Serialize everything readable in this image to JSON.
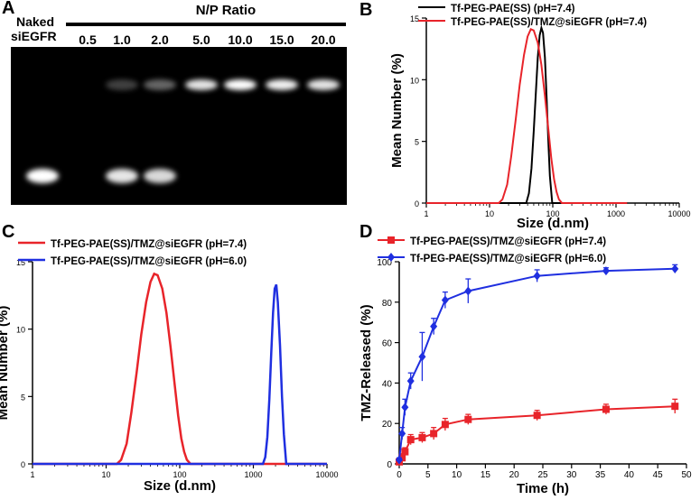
{
  "panels": {
    "a": {
      "letter": "A",
      "header": "N/P Ratio",
      "lane_labels": [
        "Naked\nsiEGFR",
        "0.5",
        "1.0",
        "2.0",
        "5.0",
        "10.0",
        "15.0",
        "20.0"
      ],
      "band_pattern": {
        "free_sirna_band": [
          1.0,
          0.0,
          0.9,
          0.85,
          0.0,
          0.0,
          0.0,
          0.0
        ],
        "retained_band": [
          0.0,
          0.0,
          0.25,
          0.4,
          0.9,
          1.0,
          0.95,
          0.9
        ]
      },
      "colors": {
        "gel_background": "#000000",
        "band": "#ffffff"
      }
    },
    "b": {
      "letter": "B"
    },
    "c": {
      "letter": "C"
    },
    "d": {
      "letter": "D"
    }
  },
  "chart_data": [
    {
      "panel": "B",
      "type": "line",
      "xscale": "log",
      "xlabel": "Size (d.nm)",
      "ylabel": "Mean Number (%)",
      "xlim": [
        1,
        10000
      ],
      "ylim": [
        0,
        15
      ],
      "xticks": [
        "1",
        "10",
        "100",
        "1000",
        "10000"
      ],
      "yticks": [
        "0",
        "5",
        "10",
        "15"
      ],
      "legend_position": "top",
      "series": [
        {
          "name": "Tf-PEG-PAE(SS) (pH=7.4)",
          "color": "#000000",
          "x": [
            1,
            38,
            42,
            46,
            50,
            54,
            58,
            62,
            66,
            70,
            75,
            80,
            85,
            90,
            98,
            1500
          ],
          "y": [
            0,
            0,
            0.8,
            2.8,
            5.8,
            9.0,
            11.8,
            13.6,
            14.2,
            13.8,
            11.8,
            8.5,
            5.0,
            2.2,
            0,
            0
          ]
        },
        {
          "name": "Tf-PEG-PAE(SS)/TMZ@siEGFR (pH=7.4)",
          "color": "#e8242a",
          "x": [
            1,
            14,
            16,
            19,
            22,
            26,
            30,
            35,
            40,
            45,
            50,
            58,
            66,
            75,
            85,
            95,
            105,
            115,
            125,
            140,
            1500
          ],
          "y": [
            0,
            0,
            0.3,
            1.5,
            3.8,
            6.8,
            9.6,
            12.0,
            13.5,
            14.1,
            14.0,
            13.0,
            11.2,
            8.7,
            6.0,
            3.6,
            1.9,
            0.9,
            0.3,
            0,
            0
          ]
        }
      ]
    },
    {
      "panel": "C",
      "type": "line",
      "xscale": "log",
      "xlabel": "Size (d.nm)",
      "ylabel": "Mean Number (%)",
      "xlim": [
        1,
        10000
      ],
      "ylim": [
        0,
        15
      ],
      "xticks": [
        "1",
        "10",
        "100",
        "1000",
        "10000"
      ],
      "yticks": [
        "0",
        "5",
        "10",
        "15"
      ],
      "legend_position": "top-left",
      "series": [
        {
          "name": "Tf-PEG-PAE(SS)/TMZ@siEGFR (pH=7.4)",
          "color": "#e8242a",
          "x": [
            1,
            14,
            16,
            19,
            22,
            26,
            30,
            35,
            40,
            45,
            50,
            58,
            66,
            75,
            85,
            95,
            105,
            115,
            125,
            140,
            10000
          ],
          "y": [
            0,
            0,
            0.3,
            1.5,
            3.8,
            6.8,
            9.6,
            12.0,
            13.5,
            14.1,
            14.0,
            13.0,
            11.2,
            8.7,
            6.0,
            3.6,
            1.9,
            0.9,
            0.3,
            0,
            0
          ]
        },
        {
          "name": "Tf-PEG-PAE(SS)/TMZ@siEGFR (pH=6.0)",
          "color": "#1f2fe0",
          "x": [
            1,
            1350,
            1450,
            1550,
            1650,
            1750,
            1850,
            1950,
            2050,
            2150,
            2300,
            2450,
            2600,
            2800,
            10000
          ],
          "y": [
            0,
            0,
            0.5,
            2.0,
            4.8,
            8.2,
            11.2,
            13.0,
            13.3,
            12.0,
            8.8,
            5.0,
            2.2,
            0,
            0
          ]
        }
      ]
    },
    {
      "panel": "D",
      "type": "line",
      "xlabel": "Time (h)",
      "ylabel": "TMZ-Released (%)",
      "xlim": [
        0,
        50
      ],
      "ylim": [
        0,
        100
      ],
      "xticks": [
        "0",
        "5",
        "10",
        "15",
        "20",
        "25",
        "30",
        "35",
        "40",
        "45",
        "50"
      ],
      "yticks": [
        "0",
        "20",
        "40",
        "60",
        "80",
        "100"
      ],
      "legend_position": "top-left",
      "series": [
        {
          "name": "Tf-PEG-PAE(SS)/TMZ@siEGFR (pH=7.4)",
          "color": "#e8242a",
          "marker": "square",
          "x": [
            0,
            0.5,
            1,
            2,
            4,
            6,
            8,
            12,
            24,
            36,
            48
          ],
          "y": [
            1,
            3,
            6,
            12,
            13,
            15,
            19.5,
            22,
            24,
            27,
            28.5
          ],
          "err": [
            1,
            2,
            2,
            2.5,
            2.5,
            3,
            3,
            2.5,
            2.5,
            2.5,
            3.5
          ]
        },
        {
          "name": "Tf-PEG-PAE(SS)/TMZ@siEGFR (pH=6.0)",
          "color": "#1f2fe0",
          "marker": "diamond",
          "x": [
            0,
            0.5,
            1,
            2,
            4,
            6,
            8,
            12,
            24,
            36,
            48
          ],
          "y": [
            2,
            15,
            28,
            41,
            53,
            68,
            81,
            85.5,
            93,
            95.5,
            96.5
          ],
          "err": [
            1,
            3,
            4,
            4,
            12,
            4,
            4,
            6,
            3,
            1.5,
            2
          ]
        }
      ]
    }
  ]
}
